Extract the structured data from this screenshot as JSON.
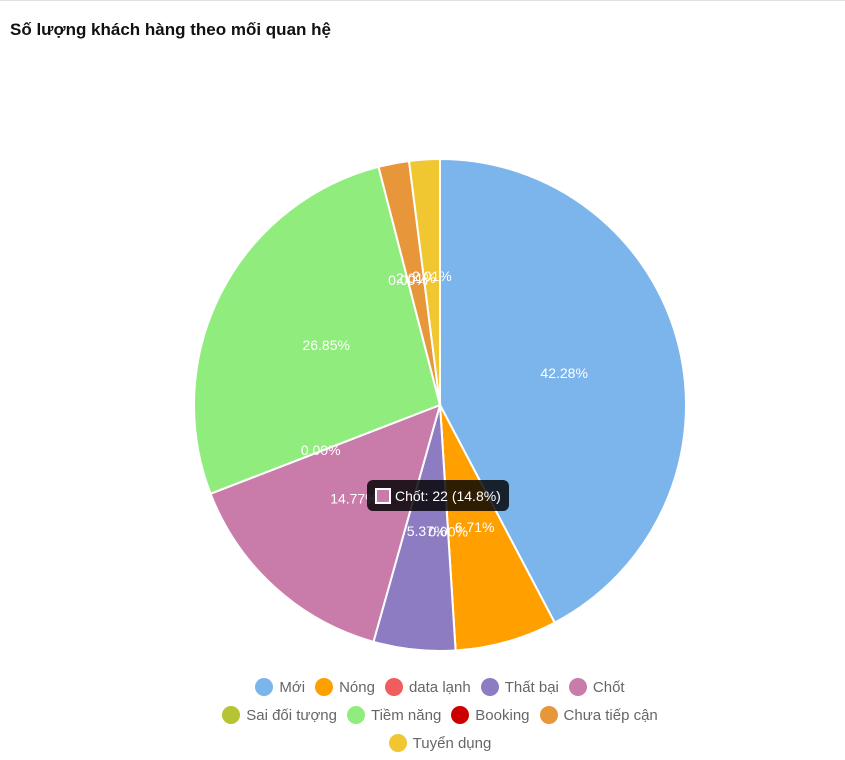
{
  "chart_data": {
    "type": "pie",
    "title": "Số lượng khách hàng theo mối quan hệ",
    "categories": [
      "Mới",
      "Nóng",
      "data lạnh",
      "Thất bại",
      "Chốt",
      "Sai đối tượng",
      "Tiềm năng",
      "Booking",
      "Chưa tiếp cận",
      "Tuyển dụng"
    ],
    "values": [
      42.28,
      6.71,
      0,
      5.37,
      14.77,
      0,
      26.85,
      0,
      2.01,
      2.01
    ],
    "value_labels": [
      "42.28%",
      "6.71%",
      "0.00%",
      "5.37%",
      "14.77%",
      "0.00%",
      "26.85%",
      "0.00%",
      "2.01%",
      "2.01%"
    ],
    "colors": [
      "#7cb5ec",
      "#ff9f00",
      "#f15c5c",
      "#8e7cc3",
      "#c97ca9",
      "#b5c334",
      "#90ed7d",
      "#cc0000",
      "#e8963a",
      "#f0c631"
    ],
    "tooltip": "Chốt: 22 (14.8%)"
  }
}
